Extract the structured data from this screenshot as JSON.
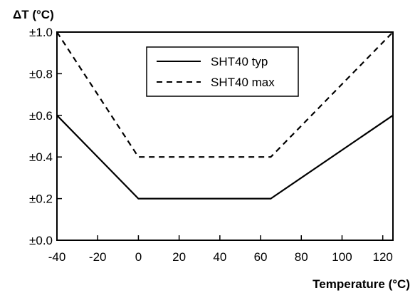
{
  "chart_data": {
    "type": "line",
    "ylabel": "ΔT (°C)",
    "xlabel": "Temperature (°C)",
    "xlim": [
      -40,
      125
    ],
    "ylim": [
      0,
      1.0
    ],
    "xticks": [
      -40,
      -20,
      0,
      20,
      40,
      60,
      80,
      100,
      120
    ],
    "xtick_labels": [
      "-40",
      "-20",
      "0",
      "20",
      "40",
      "60",
      "80",
      "100",
      "120"
    ],
    "yticks": [
      0,
      0.2,
      0.4,
      0.6,
      0.8,
      1.0
    ],
    "ytick_labels": [
      "±0.0",
      "±0.2",
      "±0.4",
      "±0.6",
      "±0.8",
      "±1.0"
    ],
    "grid": false,
    "legend_position": "top-center",
    "series": [
      {
        "name": "SHT40 typ",
        "style": "solid",
        "color": "#000000",
        "x": [
          -40,
          0,
          65,
          125
        ],
        "y": [
          0.6,
          0.2,
          0.2,
          0.6
        ]
      },
      {
        "name": "SHT40 max",
        "style": "dashed",
        "color": "#000000",
        "x": [
          -40,
          0,
          65,
          125
        ],
        "y": [
          1.0,
          0.4,
          0.4,
          1.0
        ]
      }
    ]
  }
}
